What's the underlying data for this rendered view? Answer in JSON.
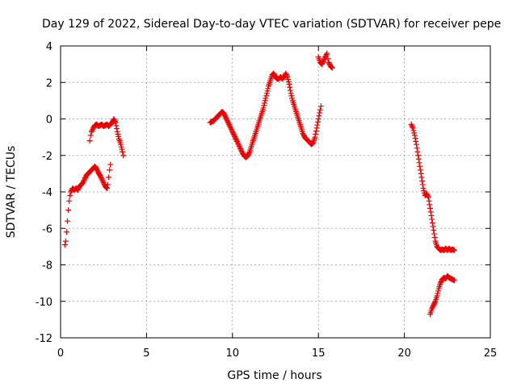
{
  "chart_data": {
    "type": "scatter",
    "title": "Day 129 of 2022, Sidereal Day-to-day VTEC variation (SDTVAR) for receiver pepe",
    "xlabel": "GPS time / hours",
    "ylabel": "SDTVAR / TECUs",
    "xlim": [
      0,
      25
    ],
    "ylim": [
      -12,
      4
    ],
    "xticks": [
      0,
      5,
      10,
      15,
      20,
      25
    ],
    "yticks": [
      -12,
      -10,
      -8,
      -6,
      -4,
      -2,
      0,
      2,
      4
    ],
    "grid": true,
    "marker": "plus",
    "color": "#ee0000",
    "series": [
      {
        "segments": [
          [
            [
              0.25,
              -6.9
            ],
            [
              0.3,
              -6.7
            ],
            [
              0.35,
              -6.2
            ],
            [
              0.4,
              -5.6
            ],
            [
              0.45,
              -5.0
            ],
            [
              0.5,
              -4.5
            ],
            [
              0.55,
              -4.2
            ],
            [
              0.6,
              -4.0
            ],
            [
              0.7,
              -3.8
            ],
            [
              0.8,
              -3.9
            ],
            [
              0.9,
              -3.8
            ],
            [
              1.0,
              -3.9
            ],
            [
              1.1,
              -3.7
            ],
            [
              1.2,
              -3.6
            ],
            [
              1.3,
              -3.5
            ],
            [
              1.4,
              -3.3
            ],
            [
              1.5,
              -3.1
            ],
            [
              1.6,
              -3.0
            ],
            [
              1.7,
              -2.9
            ],
            [
              1.8,
              -2.8
            ],
            [
              1.9,
              -2.7
            ],
            [
              2.0,
              -2.6
            ],
            [
              2.1,
              -2.75
            ],
            [
              2.2,
              -2.95
            ],
            [
              2.3,
              -3.1
            ],
            [
              2.4,
              -3.3
            ],
            [
              2.5,
              -3.5
            ],
            [
              2.6,
              -3.7
            ],
            [
              2.7,
              -3.8
            ],
            [
              2.75,
              -3.6
            ],
            [
              2.8,
              -3.2
            ],
            [
              2.85,
              -2.8
            ],
            [
              2.9,
              -2.5
            ]
          ],
          [
            [
              1.7,
              -1.2
            ],
            [
              1.75,
              -0.9
            ],
            [
              1.8,
              -0.7
            ],
            [
              1.9,
              -0.5
            ],
            [
              2.0,
              -0.35
            ],
            [
              2.1,
              -0.3
            ],
            [
              2.2,
              -0.4
            ],
            [
              2.3,
              -0.35
            ],
            [
              2.4,
              -0.3
            ],
            [
              2.5,
              -0.4
            ],
            [
              2.6,
              -0.35
            ],
            [
              2.7,
              -0.3
            ],
            [
              2.8,
              -0.4
            ],
            [
              2.9,
              -0.3
            ],
            [
              3.0,
              -0.2
            ],
            [
              3.1,
              0.0
            ],
            [
              3.2,
              -0.2
            ],
            [
              3.3,
              -0.7
            ],
            [
              3.4,
              -1.1
            ],
            [
              3.5,
              -1.4
            ],
            [
              3.6,
              -1.8
            ],
            [
              3.65,
              -2.0
            ]
          ],
          [
            [
              8.7,
              -0.2
            ],
            [
              8.8,
              -0.15
            ],
            [
              8.9,
              -0.1
            ],
            [
              9.0,
              0.0
            ],
            [
              9.1,
              0.1
            ],
            [
              9.2,
              0.2
            ],
            [
              9.3,
              0.3
            ],
            [
              9.4,
              0.4
            ],
            [
              9.5,
              0.3
            ],
            [
              9.6,
              0.1
            ],
            [
              9.7,
              -0.1
            ],
            [
              9.8,
              -0.3
            ],
            [
              9.9,
              -0.5
            ],
            [
              10.0,
              -0.7
            ],
            [
              10.1,
              -0.9
            ],
            [
              10.2,
              -1.1
            ],
            [
              10.3,
              -1.3
            ],
            [
              10.4,
              -1.5
            ],
            [
              10.5,
              -1.7
            ],
            [
              10.6,
              -1.9
            ],
            [
              10.7,
              -2.05
            ],
            [
              10.8,
              -2.1
            ],
            [
              10.9,
              -2.0
            ],
            [
              11.0,
              -1.8
            ],
            [
              11.1,
              -1.5
            ],
            [
              11.2,
              -1.2
            ],
            [
              11.3,
              -0.9
            ],
            [
              11.4,
              -0.6
            ],
            [
              11.5,
              -0.3
            ],
            [
              11.6,
              0.0
            ],
            [
              11.7,
              0.3
            ],
            [
              11.8,
              0.6
            ],
            [
              11.9,
              1.0
            ],
            [
              12.0,
              1.4
            ],
            [
              12.1,
              1.8
            ],
            [
              12.2,
              2.1
            ],
            [
              12.3,
              2.4
            ],
            [
              12.4,
              2.5
            ],
            [
              12.5,
              2.3
            ],
            [
              12.6,
              2.2
            ],
            [
              12.7,
              2.2
            ],
            [
              12.8,
              2.3
            ],
            [
              12.9,
              2.2
            ],
            [
              13.0,
              2.3
            ],
            [
              13.1,
              2.5
            ],
            [
              13.2,
              2.3
            ],
            [
              13.3,
              1.9
            ],
            [
              13.4,
              1.4
            ],
            [
              13.5,
              1.0
            ],
            [
              13.6,
              0.7
            ],
            [
              13.7,
              0.4
            ],
            [
              13.8,
              0.1
            ],
            [
              13.9,
              -0.2
            ],
            [
              14.0,
              -0.5
            ],
            [
              14.1,
              -0.8
            ],
            [
              14.2,
              -1.0
            ],
            [
              14.3,
              -1.1
            ],
            [
              14.4,
              -1.2
            ],
            [
              14.5,
              -1.3
            ],
            [
              14.6,
              -1.4
            ],
            [
              14.7,
              -1.3
            ],
            [
              14.8,
              -1.0
            ],
            [
              14.9,
              -0.5
            ],
            [
              15.0,
              0.0
            ],
            [
              15.1,
              0.5
            ],
            [
              15.15,
              0.7
            ]
          ],
          [
            [
              15.0,
              3.4
            ],
            [
              15.1,
              3.1
            ],
            [
              15.2,
              3.0
            ],
            [
              15.3,
              3.2
            ],
            [
              15.4,
              3.4
            ],
            [
              15.5,
              3.6
            ],
            [
              15.55,
              3.3
            ],
            [
              15.6,
              3.1
            ],
            [
              15.7,
              2.9
            ],
            [
              15.8,
              2.8
            ]
          ],
          [
            [
              20.4,
              -0.3
            ],
            [
              20.5,
              -0.5
            ],
            [
              20.6,
              -0.9
            ],
            [
              20.7,
              -1.4
            ],
            [
              20.8,
              -2.0
            ],
            [
              20.9,
              -2.6
            ],
            [
              21.0,
              -3.2
            ],
            [
              21.1,
              -3.8
            ],
            [
              21.2,
              -4.2
            ],
            [
              21.3,
              -4.1
            ],
            [
              21.4,
              -4.3
            ],
            [
              21.5,
              -4.9
            ],
            [
              21.6,
              -5.5
            ],
            [
              21.7,
              -6.1
            ],
            [
              21.8,
              -6.7
            ],
            [
              21.9,
              -7.0
            ],
            [
              22.0,
              -7.1
            ],
            [
              22.1,
              -7.2
            ],
            [
              22.2,
              -7.15
            ],
            [
              22.3,
              -7.2
            ],
            [
              22.4,
              -7.1
            ],
            [
              22.5,
              -7.2
            ],
            [
              22.6,
              -7.1
            ],
            [
              22.7,
              -7.2
            ],
            [
              22.8,
              -7.15
            ],
            [
              22.9,
              -7.2
            ]
          ],
          [
            [
              21.5,
              -10.7
            ],
            [
              21.6,
              -10.4
            ],
            [
              21.7,
              -10.2
            ],
            [
              21.8,
              -10.0
            ],
            [
              21.9,
              -9.7
            ],
            [
              22.0,
              -9.3
            ],
            [
              22.1,
              -9.0
            ],
            [
              22.2,
              -8.8
            ],
            [
              22.3,
              -8.7
            ],
            [
              22.4,
              -8.75
            ],
            [
              22.5,
              -8.6
            ],
            [
              22.6,
              -8.7
            ],
            [
              22.7,
              -8.75
            ],
            [
              22.8,
              -8.8
            ],
            [
              22.9,
              -8.85
            ]
          ]
        ]
      }
    ]
  }
}
